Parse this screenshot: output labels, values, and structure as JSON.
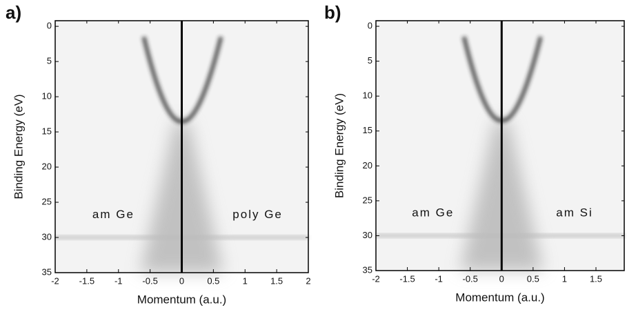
{
  "chart_data": [
    {
      "type": "image",
      "panel_label": "a)",
      "xlabel": "Momentum (a.u.)",
      "ylabel": "Binding Energy (eV)",
      "annotations": [
        "am Ge",
        "poly Ge"
      ],
      "xlim": [
        -2,
        2
      ],
      "xticks": [
        -2,
        -1.5,
        -1,
        -0.5,
        0,
        0.5,
        1,
        1.5,
        2
      ],
      "ylim": [
        -0.8,
        35
      ],
      "yticks": [
        0,
        5,
        10,
        15,
        20,
        25,
        30,
        35
      ]
    },
    {
      "type": "image",
      "panel_label": "b)",
      "xlabel": "Momentum (a.u.)",
      "ylabel": "Binding Energy (eV)",
      "annotations": [
        "am Ge",
        "am Si"
      ],
      "xlim": [
        -2,
        1.95
      ],
      "xticks": [
        -2,
        -1.5,
        -1,
        -0.5,
        0,
        0.5,
        1,
        1.5
      ],
      "ylim": [
        -0.8,
        35
      ],
      "yticks": [
        0,
        5,
        10,
        15,
        20,
        25,
        30,
        35
      ]
    }
  ]
}
